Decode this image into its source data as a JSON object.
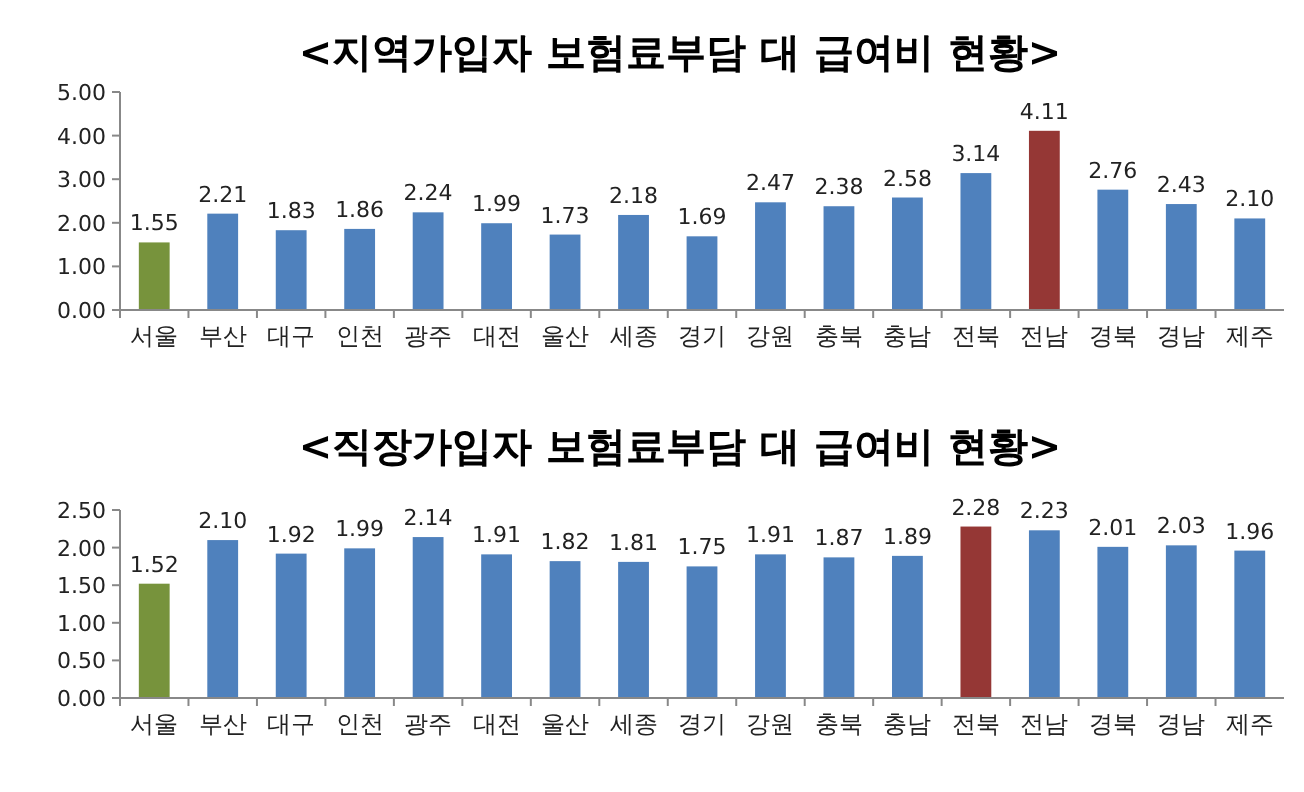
{
  "chart_data": [
    {
      "type": "bar",
      "title": "<지역가입자 보험료부담 대 급여비 현황>",
      "categories": [
        "서울",
        "부산",
        "대구",
        "인천",
        "광주",
        "대전",
        "울산",
        "세종",
        "경기",
        "강원",
        "충북",
        "충남",
        "전북",
        "전남",
        "경북",
        "경남",
        "제주"
      ],
      "values": [
        1.55,
        2.21,
        1.83,
        1.86,
        2.24,
        1.99,
        1.73,
        2.18,
        1.69,
        2.47,
        2.38,
        2.58,
        3.14,
        4.11,
        2.76,
        2.43,
        2.1
      ],
      "value_labels": [
        "1.55",
        "2.21",
        "1.83",
        "1.86",
        "2.24",
        "1.99",
        "1.73",
        "2.18",
        "1.69",
        "2.47",
        "2.38",
        "2.58",
        "3.14",
        "4.11",
        "2.76",
        "2.43",
        "2.10"
      ],
      "colors": [
        "#77933c",
        "#4f81bd",
        "#4f81bd",
        "#4f81bd",
        "#4f81bd",
        "#4f81bd",
        "#4f81bd",
        "#4f81bd",
        "#4f81bd",
        "#4f81bd",
        "#4f81bd",
        "#4f81bd",
        "#4f81bd",
        "#953735",
        "#4f81bd",
        "#4f81bd",
        "#4f81bd"
      ],
      "ylim": [
        0,
        5
      ],
      "yticks": [
        {
          "value": 0,
          "label": "0.00"
        },
        {
          "value": 1,
          "label": "1.00"
        },
        {
          "value": 2,
          "label": "2.00"
        },
        {
          "value": 3,
          "label": "3.00"
        },
        {
          "value": 4,
          "label": "4.00"
        },
        {
          "value": 5,
          "label": "5.00"
        }
      ],
      "grid": false
    },
    {
      "type": "bar",
      "title": "<직장가입자 보험료부담 대 급여비 현황>",
      "categories": [
        "서울",
        "부산",
        "대구",
        "인천",
        "광주",
        "대전",
        "울산",
        "세종",
        "경기",
        "강원",
        "충북",
        "충남",
        "전북",
        "전남",
        "경북",
        "경남",
        "제주"
      ],
      "values": [
        1.52,
        2.1,
        1.92,
        1.99,
        2.14,
        1.91,
        1.82,
        1.81,
        1.75,
        1.91,
        1.87,
        1.89,
        2.28,
        2.23,
        2.01,
        2.03,
        1.96
      ],
      "value_labels": [
        "1.52",
        "2.10",
        "1.92",
        "1.99",
        "2.14",
        "1.91",
        "1.82",
        "1.81",
        "1.75",
        "1.91",
        "1.87",
        "1.89",
        "2.28",
        "2.23",
        "2.01",
        "2.03",
        "1.96"
      ],
      "colors": [
        "#77933c",
        "#4f81bd",
        "#4f81bd",
        "#4f81bd",
        "#4f81bd",
        "#4f81bd",
        "#4f81bd",
        "#4f81bd",
        "#4f81bd",
        "#4f81bd",
        "#4f81bd",
        "#4f81bd",
        "#953735",
        "#4f81bd",
        "#4f81bd",
        "#4f81bd",
        "#4f81bd"
      ],
      "ylim": [
        0,
        2.5
      ],
      "yticks": [
        {
          "value": 0,
          "label": "0.00"
        },
        {
          "value": 0.5,
          "label": "0.50"
        },
        {
          "value": 1,
          "label": "1.00"
        },
        {
          "value": 1.5,
          "label": "1.50"
        },
        {
          "value": 2,
          "label": "2.00"
        },
        {
          "value": 2.5,
          "label": "2.50"
        }
      ],
      "grid": false
    }
  ]
}
